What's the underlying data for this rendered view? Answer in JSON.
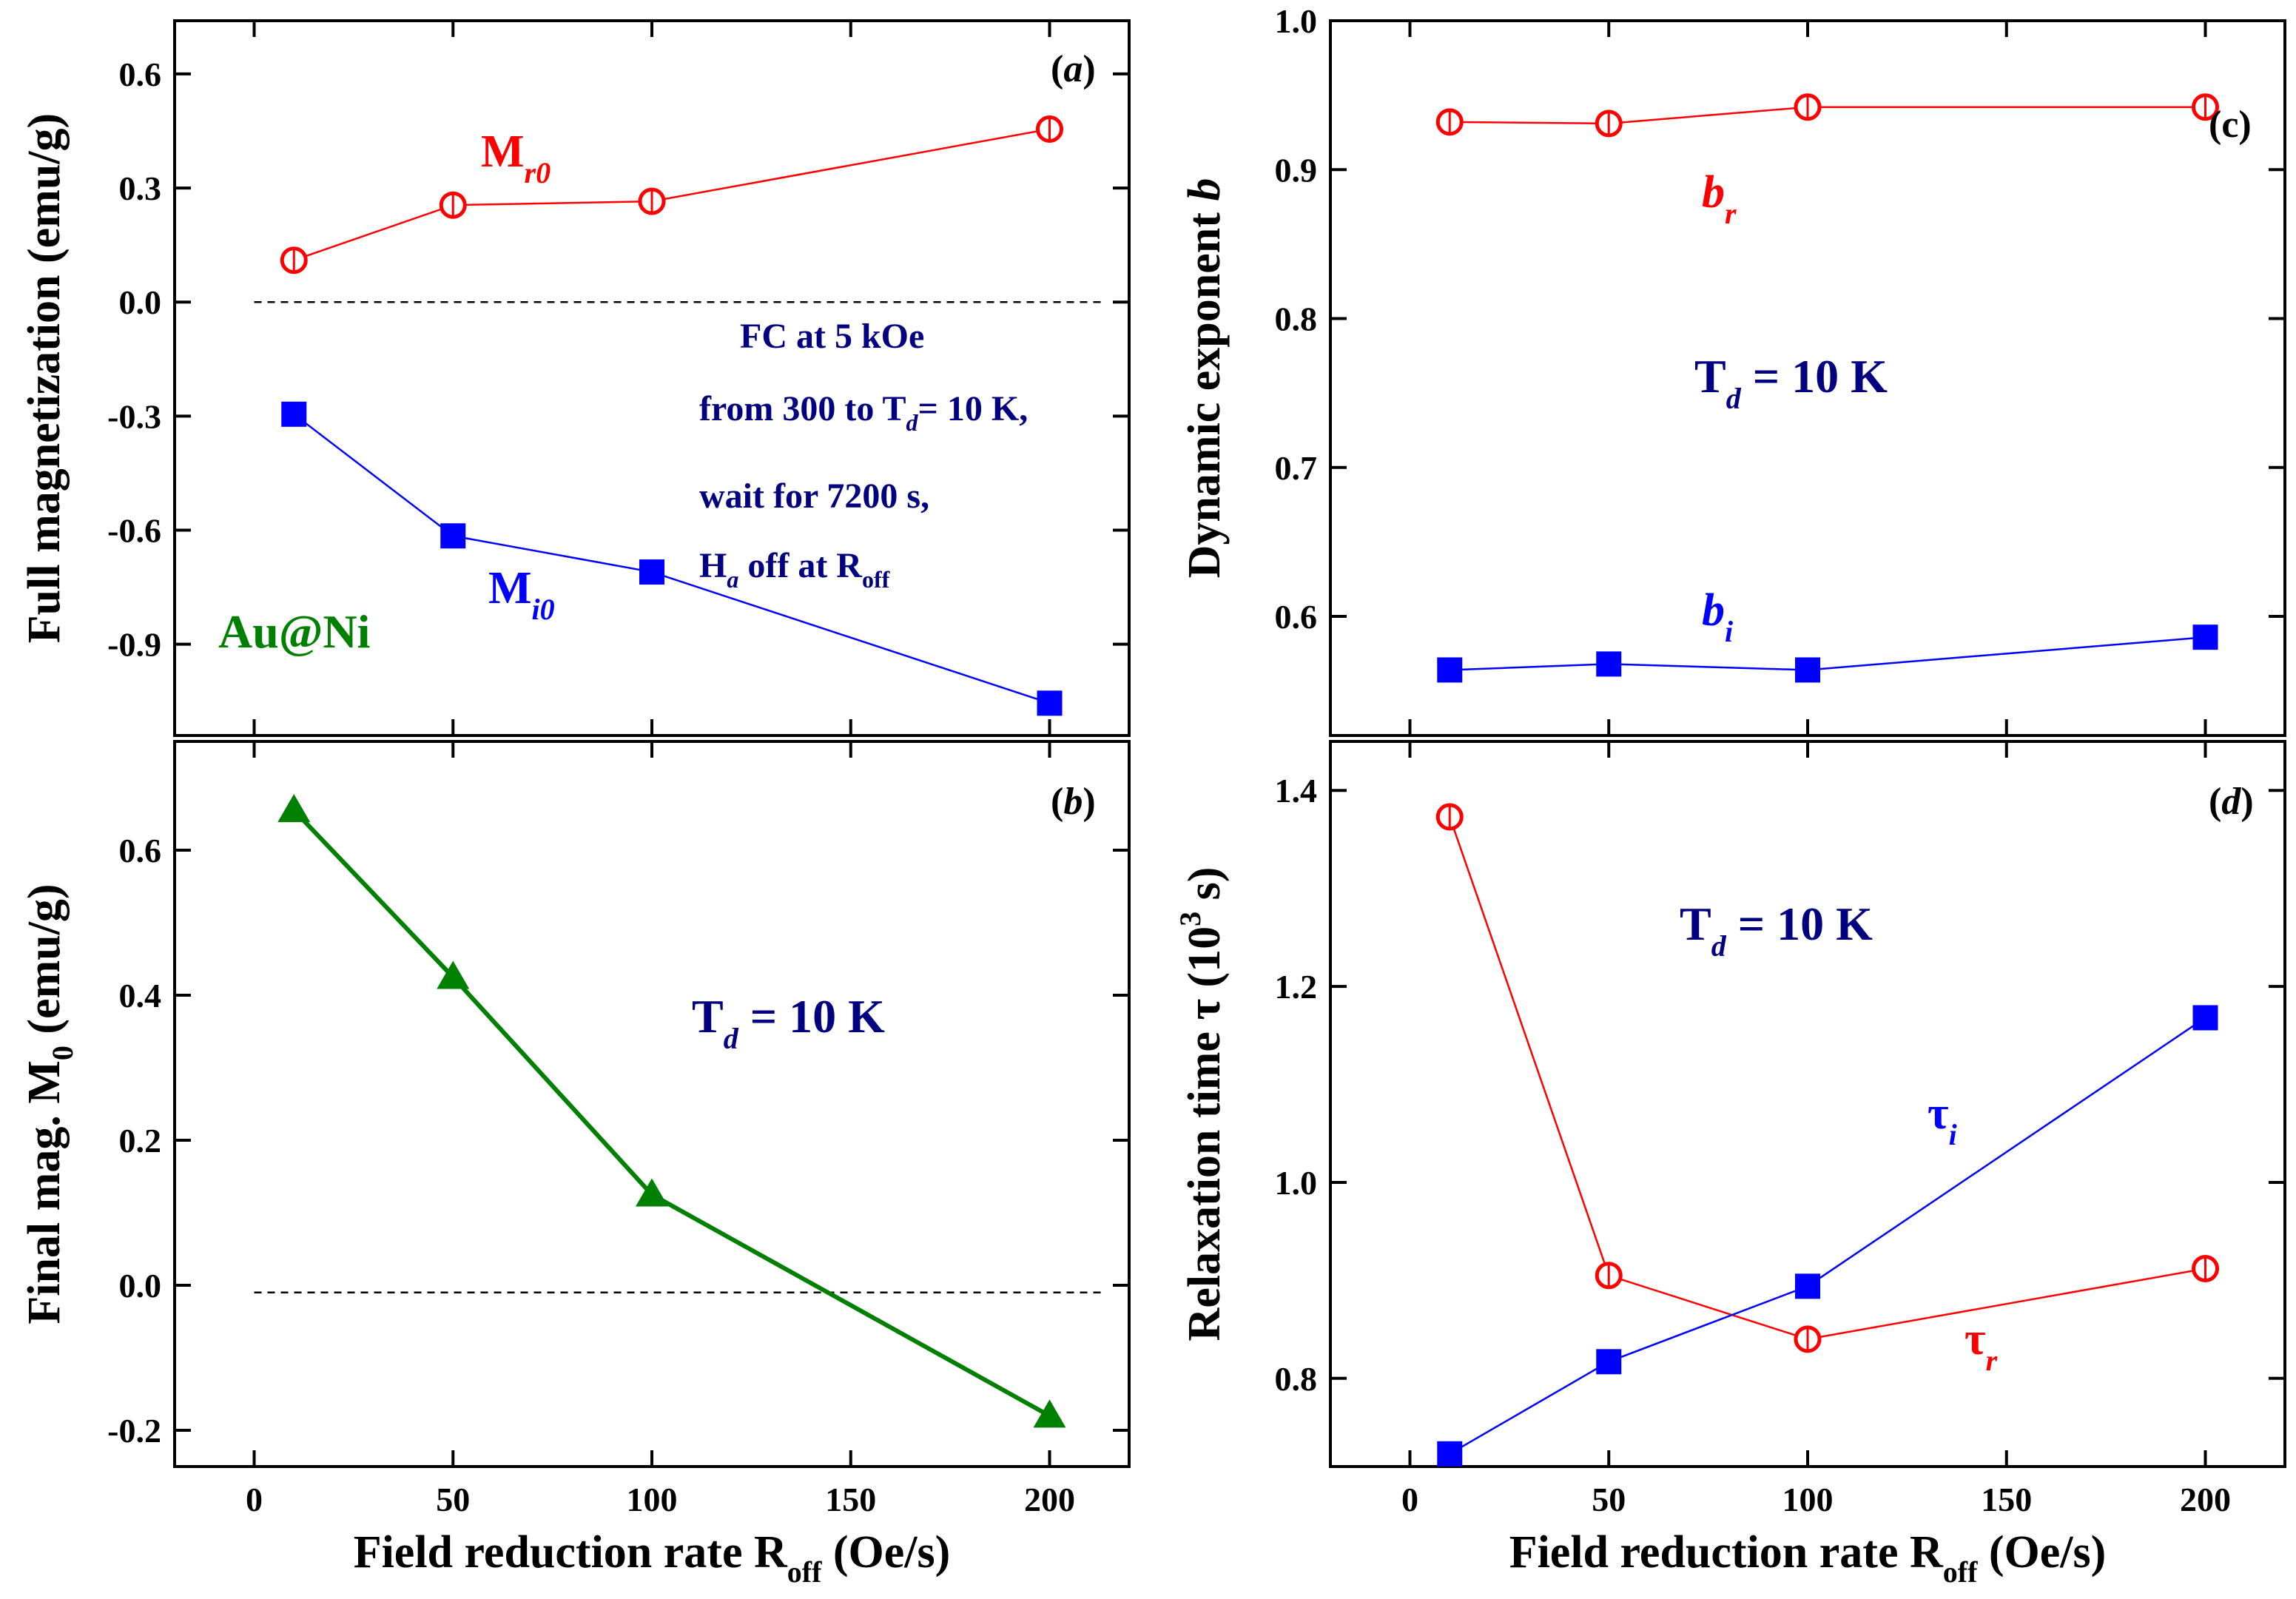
{
  "chart_data": [
    {
      "panel": "a",
      "type": "line",
      "tag": "(a)",
      "ylabel": "Full magnetization (emu/g)",
      "xlim": [
        -20,
        220
      ],
      "ylim": [
        -1.14,
        0.74
      ],
      "xticks": [
        0,
        50,
        100,
        150,
        200
      ],
      "xtick_labels": [
        "",
        "",
        "",
        "",
        ""
      ],
      "yticks": [
        0.6,
        0.3,
        0.0,
        -0.3,
        -0.6,
        -0.9
      ],
      "ytick_labels": [
        "0.6",
        "0.3",
        "0.0",
        "-0.3",
        "-0.6",
        "-0.9"
      ],
      "hline": 0.0,
      "series": [
        {
          "label": "M",
          "sub": "r0",
          "marker": "circle",
          "color": "#ff0000",
          "x": [
            10,
            50,
            100,
            200
          ],
          "y": [
            0.11,
            0.255,
            0.265,
            0.455
          ]
        },
        {
          "label": "M",
          "sub": "i0",
          "marker": "square",
          "color": "#0000ff",
          "x": [
            10,
            50,
            100,
            200
          ],
          "y": [
            -0.295,
            -0.615,
            -0.71,
            -1.055
          ]
        }
      ],
      "annotations": [
        {
          "id": "sample",
          "text": "Au@Ni",
          "color": "#008000"
        },
        {
          "id": "protocol-1",
          "text": "FC at 5 kOe",
          "color": "#000080"
        },
        {
          "id": "protocol-2a",
          "text": "from 300 to T",
          "sub": "d",
          "rest": "= 10 K,",
          "color": "#000080"
        },
        {
          "id": "protocol-3",
          "text": "wait for 7200 s,",
          "color": "#000080"
        },
        {
          "id": "protocol-4",
          "text": "H",
          "sub": "a",
          "rest": " off at R",
          "sub2": "off",
          "color": "#000080"
        }
      ]
    },
    {
      "panel": "b",
      "type": "line",
      "tag": "(b)",
      "ylabel": "Final mag. M",
      "ylabel_sub": "0",
      "ylabel_rest": " (emu/g)",
      "xlabel": "Field reduction rate R",
      "xlabel_sub": "off",
      "xlabel_rest": " (Oe/s)",
      "xlim": [
        -20,
        220
      ],
      "ylim": [
        -0.25,
        0.75
      ],
      "xticks": [
        0,
        50,
        100,
        150,
        200
      ],
      "xtick_labels": [
        "0",
        "50",
        "100",
        "150",
        "200"
      ],
      "yticks": [
        0.6,
        0.4,
        0.2,
        0.0,
        -0.2
      ],
      "ytick_labels": [
        "0.6",
        "0.4",
        "0.2",
        "0.0",
        "-0.2"
      ],
      "hline": -0.01,
      "series": [
        {
          "marker": "triangle",
          "color": "#008000",
          "x": [
            10,
            50,
            100,
            200
          ],
          "y": [
            0.655,
            0.425,
            0.125,
            -0.18
          ]
        }
      ],
      "annotations": [
        {
          "id": "temp",
          "text": "T",
          "sub": "d",
          "rest": " = 10 K",
          "color": "#000080"
        }
      ]
    },
    {
      "panel": "c",
      "type": "line",
      "tag": "(c)",
      "ylabel": "Dynamic exponent ",
      "ylabel_italic": "b",
      "xlim": [
        -20,
        220
      ],
      "ylim": [
        0.52,
        1.0
      ],
      "xticks": [
        0,
        50,
        100,
        150,
        200
      ],
      "xtick_labels": [
        "",
        "",
        "",
        "",
        ""
      ],
      "yticks": [
        1.0,
        0.9,
        0.8,
        0.7,
        0.6
      ],
      "ytick_labels": [
        "1.0",
        "0.9",
        "0.8",
        "0.7",
        "0.6"
      ],
      "series": [
        {
          "label": "b",
          "sub": "r",
          "marker": "circle",
          "color": "#ff0000",
          "x": [
            10,
            50,
            100,
            200
          ],
          "y": [
            0.932,
            0.931,
            0.942,
            0.942
          ]
        },
        {
          "label": "b",
          "sub": "i",
          "marker": "square",
          "color": "#0000ff",
          "x": [
            10,
            50,
            100,
            200
          ],
          "y": [
            0.564,
            0.568,
            0.564,
            0.586
          ]
        }
      ],
      "annotations": [
        {
          "id": "temp",
          "text": "T",
          "sub": "d",
          "rest": " = 10 K",
          "color": "#000080"
        }
      ]
    },
    {
      "panel": "d",
      "type": "line",
      "tag": "(d)",
      "ylabel": "Relaxation time τ (10",
      "ylabel_sup": "3",
      "ylabel_rest": " s)",
      "xlabel": "Field reduction rate R",
      "xlabel_sub": "off",
      "xlabel_rest": " (Oe/s)",
      "xlim": [
        -20,
        220
      ],
      "ylim": [
        0.71,
        1.45
      ],
      "xticks": [
        0,
        50,
        100,
        150,
        200
      ],
      "xtick_labels": [
        "0",
        "50",
        "100",
        "150",
        "200"
      ],
      "yticks": [
        1.4,
        1.2,
        1.0,
        0.8
      ],
      "ytick_labels": [
        "1.4",
        "1.2",
        "1.0",
        "0.8"
      ],
      "series": [
        {
          "label": "τ",
          "sub": "r",
          "marker": "circle",
          "color": "#ff0000",
          "x": [
            10,
            50,
            100,
            200
          ],
          "y": [
            1.373,
            0.905,
            0.84,
            0.912
          ]
        },
        {
          "label": "τ",
          "sub": "i",
          "marker": "square",
          "color": "#0000ff",
          "x": [
            10,
            50,
            100,
            200
          ],
          "y": [
            0.723,
            0.817,
            0.894,
            1.168
          ]
        }
      ],
      "annotations": [
        {
          "id": "temp",
          "text": "T",
          "sub": "d",
          "rest": " = 10 K",
          "color": "#000080"
        }
      ]
    }
  ]
}
